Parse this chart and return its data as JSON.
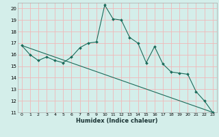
{
  "title": "",
  "xlabel": "Humidex (Indice chaleur)",
  "ylabel": "",
  "xlim": [
    -0.5,
    23.5
  ],
  "ylim": [
    11,
    20.5
  ],
  "yticks": [
    11,
    12,
    13,
    14,
    15,
    16,
    17,
    18,
    19,
    20
  ],
  "xticks": [
    0,
    1,
    2,
    3,
    4,
    5,
    6,
    7,
    8,
    9,
    10,
    11,
    12,
    13,
    14,
    15,
    16,
    17,
    18,
    19,
    20,
    21,
    22,
    23
  ],
  "bg_color": "#d4eeea",
  "grid_color": "#f0b8b8",
  "line_color": "#1a6b5a",
  "line1_x": [
    0,
    1,
    2,
    3,
    4,
    5,
    6,
    7,
    8,
    9,
    10,
    11,
    12,
    13,
    14,
    15,
    16,
    17,
    18,
    19,
    20,
    21,
    22,
    23
  ],
  "line1_y": [
    16.8,
    16.0,
    15.5,
    15.8,
    15.5,
    15.3,
    15.8,
    16.6,
    17.0,
    17.1,
    20.3,
    19.1,
    19.0,
    17.5,
    17.0,
    15.3,
    16.7,
    15.2,
    14.5,
    14.4,
    14.3,
    12.8,
    12.0,
    11.0
  ],
  "line2_x": [
    0,
    23
  ],
  "line2_y": [
    16.8,
    11.0
  ]
}
